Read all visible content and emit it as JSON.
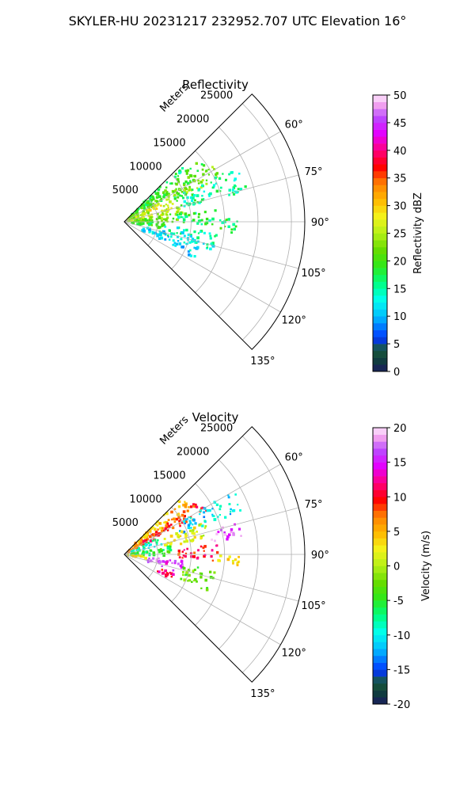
{
  "suptitle": "SKYLER-HU  20231217  232952.707 UTC Elevation 16°",
  "chart_data": [
    {
      "type": "heatmap",
      "subtype": "polar-sector",
      "title": "Reflectivity",
      "radial_label": "Meters",
      "radial_ticks": [
        "5000",
        "10000",
        "15000",
        "20000",
        "25000"
      ],
      "radial_values": [
        5000,
        10000,
        15000,
        20000,
        25000
      ],
      "r_max": 27000,
      "theta_range_deg": [
        45,
        135
      ],
      "angle_values": [
        60,
        75,
        90,
        105,
        120,
        135
      ],
      "angle_ticks": [
        "60°",
        "75°",
        "90°",
        "105°",
        "120°",
        "135°"
      ],
      "grid": true,
      "colorbar": {
        "label": "Reflectivity dBZ",
        "min": 0,
        "max": 50,
        "ticks": [
          "0",
          "5",
          "10",
          "15",
          "20",
          "25",
          "30",
          "35",
          "40",
          "45",
          "50"
        ],
        "tick_values": [
          0,
          5,
          10,
          15,
          20,
          25,
          30,
          35,
          40,
          45,
          50
        ],
        "colormap": "HomeyerRainbow"
      },
      "regions": [
        {
          "az": [
            45,
            52
          ],
          "r": [
            1500,
            12000
          ],
          "value": 17
        },
        {
          "az": [
            50,
            60
          ],
          "r": [
            500,
            15000
          ],
          "value": 20
        },
        {
          "az": [
            58,
            66
          ],
          "r": [
            500,
            16000
          ],
          "value": 23
        },
        {
          "az": [
            62,
            70
          ],
          "r": [
            3000,
            8000
          ],
          "value": 27
        },
        {
          "az": [
            64,
            76
          ],
          "r": [
            8000,
            19000
          ],
          "value": 16
        },
        {
          "az": [
            66,
            80
          ],
          "r": [
            500,
            4000
          ],
          "value": 25
        },
        {
          "az": [
            72,
            82
          ],
          "r": [
            4000,
            9000
          ],
          "value": 26
        },
        {
          "az": [
            80,
            90
          ],
          "r": [
            1000,
            8000
          ],
          "value": 22
        },
        {
          "az": [
            82,
            92
          ],
          "r": [
            8000,
            14000
          ],
          "value": 17
        },
        {
          "az": [
            88,
            96
          ],
          "r": [
            14000,
            17000
          ],
          "value": 18
        },
        {
          "az": [
            90,
            100
          ],
          "r": [
            1000,
            6000
          ],
          "value": 19
        },
        {
          "az": [
            96,
            108
          ],
          "r": [
            6000,
            14000
          ],
          "value": 14
        },
        {
          "az": [
            104,
            116
          ],
          "r": [
            3000,
            9000
          ],
          "value": 12
        },
        {
          "az": [
            108,
            118
          ],
          "r": [
            9000,
            12000
          ],
          "value": 11
        }
      ]
    },
    {
      "type": "heatmap",
      "subtype": "polar-sector",
      "title": "Velocity",
      "radial_label": "Meters",
      "radial_ticks": [
        "5000",
        "10000",
        "15000",
        "20000",
        "25000"
      ],
      "radial_values": [
        5000,
        10000,
        15000,
        20000,
        25000
      ],
      "r_max": 27000,
      "theta_range_deg": [
        45,
        135
      ],
      "angle_values": [
        60,
        75,
        90,
        105,
        120,
        135
      ],
      "angle_ticks": [
        "60°",
        "75°",
        "90°",
        "105°",
        "120°",
        "135°"
      ],
      "grid": true,
      "colorbar": {
        "label": "Velocity (m/s)",
        "min": -20,
        "max": 20,
        "ticks": [
          "-20",
          "-15",
          "-10",
          "-5",
          "0",
          "5",
          "10",
          "15",
          "20"
        ],
        "tick_values": [
          -20,
          -15,
          -10,
          -5,
          0,
          5,
          10,
          15,
          20
        ],
        "colormap": "HomeyerRainbow"
      },
      "regions": [
        {
          "az": [
            45,
            56
          ],
          "r": [
            1500,
            12000
          ],
          "value": 5
        },
        {
          "az": [
            54,
            64
          ],
          "r": [
            500,
            14000
          ],
          "value": 9
        },
        {
          "az": [
            60,
            70
          ],
          "r": [
            9000,
            19000
          ],
          "value": -11
        },
        {
          "az": [
            64,
            76
          ],
          "r": [
            1000,
            6000
          ],
          "value": -9
        },
        {
          "az": [
            68,
            80
          ],
          "r": [
            6000,
            13000
          ],
          "value": 2
        },
        {
          "az": [
            74,
            82
          ],
          "r": [
            13000,
            18000
          ],
          "value": 17
        },
        {
          "az": [
            80,
            92
          ],
          "r": [
            1000,
            7000
          ],
          "value": -5
        },
        {
          "az": [
            84,
            94
          ],
          "r": [
            8000,
            14000
          ],
          "value": 10
        },
        {
          "az": [
            90,
            96
          ],
          "r": [
            14000,
            17500
          ],
          "value": 4
        },
        {
          "az": [
            94,
            104
          ],
          "r": [
            500,
            3500
          ],
          "value": 2
        },
        {
          "az": [
            96,
            108
          ],
          "r": [
            3500,
            9000
          ],
          "value": 16
        },
        {
          "az": [
            100,
            114
          ],
          "r": [
            9000,
            14000
          ],
          "value": -3
        },
        {
          "az": [
            110,
            118
          ],
          "r": [
            5000,
            8000
          ],
          "value": 11
        }
      ]
    }
  ]
}
